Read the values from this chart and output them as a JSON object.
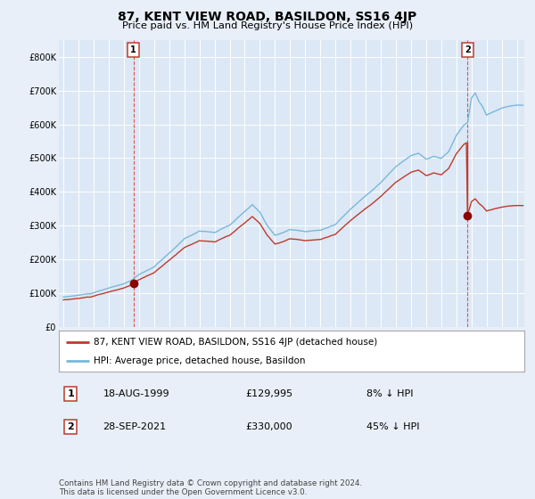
{
  "title": "87, KENT VIEW ROAD, BASILDON, SS16 4JP",
  "subtitle": "Price paid vs. HM Land Registry's House Price Index (HPI)",
  "legend_line1": "87, KENT VIEW ROAD, BASILDON, SS16 4JP (detached house)",
  "legend_line2": "HPI: Average price, detached house, Basildon",
  "transaction1_date": "18-AUG-1999",
  "transaction1_price": "£129,995",
  "transaction1_hpi": "8% ↓ HPI",
  "transaction1_year": 1999.63,
  "transaction1_value": 129995,
  "transaction2_date": "28-SEP-2021",
  "transaction2_price": "£330,000",
  "transaction2_hpi": "45% ↓ HPI",
  "transaction2_year": 2021.75,
  "transaction2_value": 330000,
  "hpi_color": "#7ab8d9",
  "price_color": "#c0392b",
  "dot_color": "#8b0000",
  "vline_color": "#e05555",
  "bg_color": "#e8eff8",
  "plot_bg": "#dce8f5",
  "grid_color": "#ffffff",
  "ylim": [
    0,
    850000
  ],
  "xlim_start": 1994.7,
  "xlim_end": 2025.5,
  "footer": "Contains HM Land Registry data © Crown copyright and database right 2024.\nThis data is licensed under the Open Government Licence v3.0."
}
